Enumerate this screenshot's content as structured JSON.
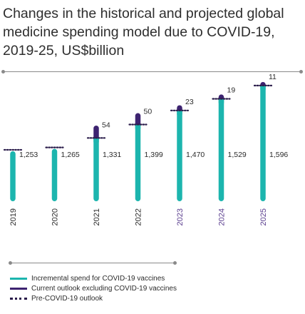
{
  "chart_data": {
    "type": "bar",
    "title": "Changes in the historical and projected global medicine spending model due to COVID-19, 2019-25, US$billion",
    "categories": [
      "2019",
      "2020",
      "2021",
      "2022",
      "2023",
      "2024",
      "2025"
    ],
    "series": [
      {
        "name": "Incremental spend for COVID-19 vaccines",
        "labels": [
          "1,253",
          "1,265",
          "1,331",
          "1,399",
          "1,470",
          "1,529",
          "1,596"
        ],
        "values": [
          1253,
          1265,
          1331,
          1399,
          1470,
          1529,
          1596
        ]
      },
      {
        "name": "Current outlook excluding COVID-19 vaccines",
        "labels": [
          "",
          "",
          "54",
          "50",
          "23",
          "19",
          "11"
        ],
        "values": [
          0,
          0,
          54,
          50,
          23,
          19,
          11
        ]
      },
      {
        "name": "Pre-COVID-19 outlook",
        "values": [
          1253,
          1265,
          1331,
          1399,
          1470,
          1529,
          1596
        ]
      }
    ],
    "ylim": [
      1000,
      1650
    ],
    "legend_position": "bottom-left",
    "colors": {
      "teal": "#1cb5ae",
      "purple": "#3d2370",
      "dots": "#2a1c4a",
      "year_text": "#2b2b2b",
      "year_text_forecast": "#5b3f8f"
    }
  }
}
